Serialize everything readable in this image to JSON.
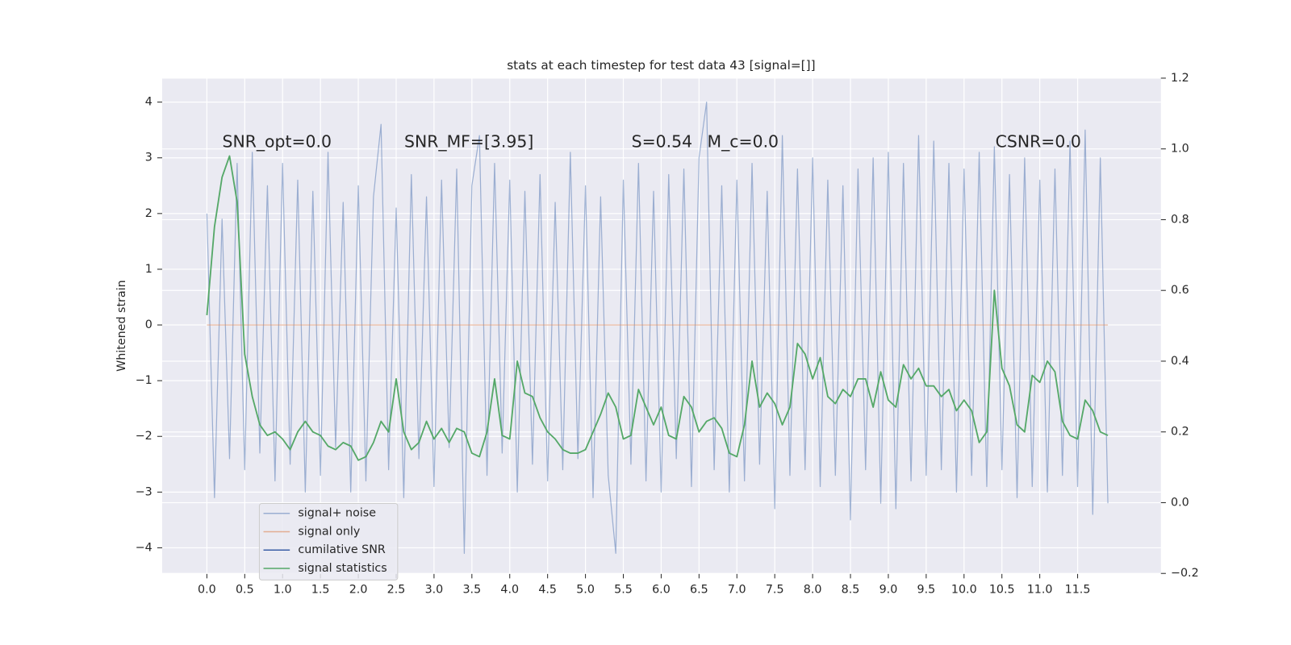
{
  "chart_data": {
    "type": "line",
    "title": "stats at each timestep for test data 43 [signal=[]]",
    "ylabel": "Whitened strain",
    "annotations": [
      "SNR_opt=0.0",
      "SNR_MF=[3.95]",
      "S=0.54",
      "M_c=0.0",
      "CSNR=0.0"
    ],
    "grid": true,
    "legend": "lower left",
    "xlim": [
      -0.59,
      12.6
    ],
    "ylim": [
      -4.46,
      4.43
    ],
    "y2lim": [
      -0.2,
      1.2
    ],
    "xticks": [
      {
        "value": 0,
        "label": "0.0"
      },
      {
        "value": 0.5,
        "label": "0.5"
      },
      {
        "value": 1,
        "label": "1.0"
      },
      {
        "value": 1.5,
        "label": "1.5"
      },
      {
        "value": 2,
        "label": "2.0"
      },
      {
        "value": 2.5,
        "label": "2.5"
      },
      {
        "value": 3,
        "label": "3.0"
      },
      {
        "value": 3.5,
        "label": "3.5"
      },
      {
        "value": 4,
        "label": "4.0"
      },
      {
        "value": 4.5,
        "label": "4.5"
      },
      {
        "value": 5,
        "label": "5.0"
      },
      {
        "value": 5.5,
        "label": "5.5"
      },
      {
        "value": 6,
        "label": "6.0"
      },
      {
        "value": 6.5,
        "label": "6.5"
      },
      {
        "value": 7,
        "label": "7.0"
      },
      {
        "value": 7.5,
        "label": "7.5"
      },
      {
        "value": 8,
        "label": "8.0"
      },
      {
        "value": 8.5,
        "label": "8.5"
      },
      {
        "value": 9,
        "label": "9.0"
      },
      {
        "value": 9.5,
        "label": "9.5"
      },
      {
        "value": 10,
        "label": "10.0"
      },
      {
        "value": 10.5,
        "label": "10.5"
      },
      {
        "value": 11,
        "label": "11.0"
      },
      {
        "value": 11.5,
        "label": "11.5"
      }
    ],
    "yticks": [
      {
        "value": -4,
        "label": "−4"
      },
      {
        "value": -3,
        "label": "−3"
      },
      {
        "value": -2,
        "label": "−2"
      },
      {
        "value": -1,
        "label": "−1"
      },
      0,
      1,
      2,
      3,
      4
    ],
    "y2ticks": [
      {
        "value": -0.2,
        "label": "−0.2"
      },
      {
        "value": 0,
        "label": "0.0"
      },
      {
        "value": 0.2,
        "label": "0.2"
      },
      {
        "value": 0.4,
        "label": "0.4"
      },
      {
        "value": 0.6,
        "label": "0.6"
      },
      {
        "value": 0.8,
        "label": "0.8"
      },
      {
        "value": 1,
        "label": "1.0"
      },
      {
        "value": 1.2,
        "label": "1.2"
      }
    ],
    "x": [
      0,
      0.1,
      0.2,
      0.3,
      0.4,
      0.5,
      0.6,
      0.7,
      0.8,
      0.9,
      1,
      1.1,
      1.2,
      1.3,
      1.4,
      1.5,
      1.6,
      1.7,
      1.8,
      1.9,
      2,
      2.1,
      2.2,
      2.3,
      2.4,
      2.5,
      2.6,
      2.7,
      2.8,
      2.9,
      3,
      3.1,
      3.2,
      3.3,
      3.4,
      3.5,
      3.6,
      3.7,
      3.8,
      3.9,
      4,
      4.1,
      4.2,
      4.3,
      4.4,
      4.5,
      4.6,
      4.7,
      4.8,
      4.9,
      5,
      5.1,
      5.2,
      5.3,
      5.4,
      5.5,
      5.6,
      5.7,
      5.8,
      5.9,
      6,
      6.1,
      6.2,
      6.3,
      6.4,
      6.5,
      6.6,
      6.7,
      6.8,
      6.9,
      7,
      7.1,
      7.2,
      7.3,
      7.4,
      7.5,
      7.6,
      7.7,
      7.8,
      7.9,
      8,
      8.1,
      8.2,
      8.3,
      8.4,
      8.5,
      8.6,
      8.7,
      8.8,
      8.9,
      9,
      9.1,
      9.2,
      9.3,
      9.4,
      9.5,
      9.6,
      9.7,
      9.8,
      9.9,
      10,
      10.1,
      10.2,
      10.3,
      10.4,
      10.5,
      10.6,
      10.7,
      10.8,
      10.9,
      11,
      11.1,
      11.2,
      11.3,
      11.4,
      11.5,
      11.6,
      11.7,
      11.8,
      11.9
    ],
    "series": [
      {
        "name": "signal+ noise",
        "color": "#4c72b0",
        "values": [
          2.0,
          -3.1,
          1.9,
          -2.4,
          2.9,
          -2.6,
          3.1,
          -2.3,
          2.5,
          -2.8,
          2.9,
          -2.5,
          2.6,
          -3.0,
          2.4,
          -2.7,
          3.1,
          -2.2,
          2.2,
          -3.0,
          2.5,
          -2.8,
          2.3,
          3.6,
          -2.6,
          2.1,
          -3.1,
          2.7,
          -2.4,
          2.3,
          -2.9,
          2.6,
          -2.2,
          2.8,
          -4.1,
          2.5,
          3.4,
          -2.7,
          2.9,
          -2.3,
          2.6,
          -3.0,
          2.4,
          -2.5,
          2.7,
          -2.8,
          2.2,
          -2.6,
          3.1,
          -2.4,
          2.5,
          -3.1,
          2.3,
          -2.7,
          -4.1,
          2.6,
          -2.5,
          2.9,
          -2.8,
          2.4,
          -3.0,
          2.7,
          -2.4,
          2.8,
          -2.9,
          3.0,
          4.0,
          -2.6,
          2.5,
          -3.0,
          2.6,
          -2.8,
          2.9,
          -2.5,
          2.4,
          -3.3,
          3.4,
          -2.7,
          2.8,
          -2.6,
          3.0,
          -2.9,
          2.6,
          -2.7,
          2.5,
          -3.5,
          2.8,
          -2.6,
          3.0,
          -3.2,
          3.1,
          -3.3,
          2.9,
          -2.8,
          3.4,
          -2.7,
          3.3,
          -2.6,
          2.9,
          -3.0,
          2.8,
          -2.7,
          3.1,
          -2.9,
          3.2,
          -2.6,
          2.7,
          -3.1,
          3.0,
          -2.9,
          2.6,
          -3.0,
          2.8,
          -2.7,
          3.3,
          -2.9,
          3.5,
          -3.4,
          3.0,
          -3.2
        ]
      },
      {
        "name": "signal only",
        "color": "#dd8452",
        "values": [
          0,
          0,
          0,
          0,
          0,
          0,
          0,
          0,
          0,
          0,
          0,
          0,
          0,
          0,
          0,
          0,
          0,
          0,
          0,
          0,
          0,
          0,
          0,
          0,
          0,
          0,
          0,
          0,
          0,
          0,
          0,
          0,
          0,
          0,
          0,
          0,
          0,
          0,
          0,
          0,
          0,
          0,
          0,
          0,
          0,
          0,
          0,
          0,
          0,
          0,
          0,
          0,
          0,
          0,
          0,
          0,
          0,
          0,
          0,
          0,
          0,
          0,
          0,
          0,
          0,
          0,
          0,
          0,
          0,
          0,
          0,
          0,
          0,
          0,
          0,
          0,
          0,
          0,
          0,
          0,
          0,
          0,
          0,
          0,
          0,
          0,
          0,
          0,
          0,
          0,
          0,
          0,
          0,
          0,
          0,
          0,
          0,
          0,
          0,
          0,
          0,
          0,
          0,
          0,
          0,
          0,
          0,
          0,
          0,
          0,
          0,
          0,
          0,
          0,
          0,
          0,
          0,
          0,
          0,
          0
        ]
      },
      {
        "name": "cumilative SNR",
        "color": "#3b5ea6"
      },
      {
        "name": "signal statistics",
        "color": "#55a868",
        "axis": "y2",
        "values": [
          0.53,
          0.78,
          0.92,
          0.98,
          0.85,
          0.42,
          0.3,
          0.22,
          0.19,
          0.2,
          0.18,
          0.15,
          0.2,
          0.23,
          0.2,
          0.19,
          0.16,
          0.15,
          0.17,
          0.16,
          0.12,
          0.13,
          0.17,
          0.23,
          0.2,
          0.35,
          0.2,
          0.15,
          0.17,
          0.23,
          0.18,
          0.21,
          0.17,
          0.21,
          0.2,
          0.14,
          0.13,
          0.2,
          0.35,
          0.19,
          0.18,
          0.4,
          0.31,
          0.3,
          0.24,
          0.2,
          0.18,
          0.15,
          0.14,
          0.14,
          0.15,
          0.2,
          0.25,
          0.31,
          0.27,
          0.18,
          0.19,
          0.32,
          0.27,
          0.22,
          0.27,
          0.19,
          0.18,
          0.3,
          0.27,
          0.2,
          0.23,
          0.24,
          0.21,
          0.14,
          0.13,
          0.22,
          0.4,
          0.27,
          0.31,
          0.28,
          0.22,
          0.27,
          0.45,
          0.42,
          0.35,
          0.41,
          0.3,
          0.28,
          0.32,
          0.3,
          0.35,
          0.35,
          0.27,
          0.37,
          0.29,
          0.27,
          0.39,
          0.35,
          0.38,
          0.33,
          0.33,
          0.3,
          0.32,
          0.26,
          0.29,
          0.26,
          0.17,
          0.2,
          0.6,
          0.38,
          0.33,
          0.22,
          0.2,
          0.36,
          0.34,
          0.4,
          0.37,
          0.23,
          0.19,
          0.18,
          0.29,
          0.26,
          0.2,
          0.19
        ]
      }
    ]
  }
}
